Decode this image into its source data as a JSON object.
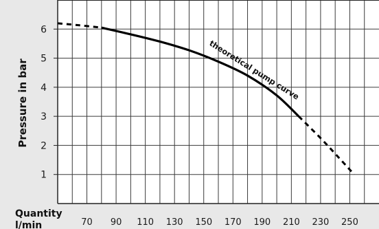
{
  "chart_data": {
    "type": "line",
    "ylabel": "Pressure in bar",
    "xlabel_line1": "Quantity",
    "xlabel_line2": "l/min",
    "x_ticks": [
      70,
      90,
      110,
      130,
      150,
      170,
      190,
      210,
      230,
      250
    ],
    "y_ticks": [
      1,
      2,
      3,
      4,
      5,
      6
    ],
    "xlim": [
      50,
      270
    ],
    "ylim": [
      0,
      7
    ],
    "grid": true,
    "annotation": "theoretical pump curve",
    "series": [
      {
        "style": "solid",
        "points": [
          [
            80,
            6.05
          ],
          [
            100,
            5.82
          ],
          [
            120,
            5.57
          ],
          [
            140,
            5.27
          ],
          [
            160,
            4.88
          ],
          [
            180,
            4.4
          ],
          [
            200,
            3.72
          ],
          [
            215,
            3.0
          ]
        ]
      },
      {
        "style": "dashed",
        "points": [
          [
            50,
            6.2
          ],
          [
            65,
            6.13
          ],
          [
            80,
            6.05
          ]
        ]
      },
      {
        "style": "dashed",
        "points": [
          [
            215,
            3.0
          ],
          [
            230,
            2.25
          ],
          [
            243,
            1.55
          ],
          [
            253,
            1.0
          ]
        ]
      }
    ],
    "colors": {
      "grid": "#3a3a3a",
      "line": "#000000",
      "axis_band": "#e8e8e8"
    }
  }
}
